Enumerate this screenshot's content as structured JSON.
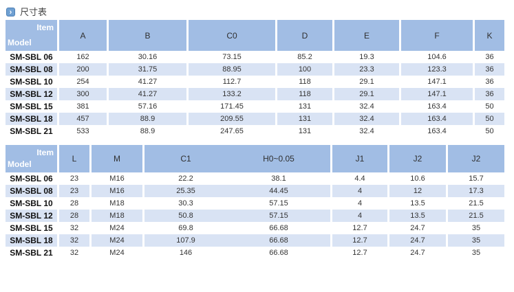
{
  "page": {
    "title": "尺寸表",
    "title_icon": "chevron-right-icon",
    "title_icon_glyph": "›"
  },
  "colors": {
    "header_bg": "#A1BDE4",
    "row_alt_bg": "#D9E3F4",
    "row_bg": "#FFFFFF",
    "icon_bg": "#6FA0D2",
    "icon_border": "#4C7FB5",
    "data_text": "#333333",
    "corner_text": "#FFFFFF"
  },
  "table1": {
    "corner": {
      "top": "Item",
      "bottom": "Model"
    },
    "columns": [
      "A",
      "B",
      "C0",
      "D",
      "E",
      "F",
      "K"
    ],
    "rows": [
      {
        "model": "SM-SBL 06",
        "values": [
          "162",
          "30.16",
          "73.15",
          "85.2",
          "19.3",
          "104.6",
          "36"
        ]
      },
      {
        "model": "SM-SBL 08",
        "values": [
          "200",
          "31.75",
          "88.95",
          "100",
          "23.3",
          "123.3",
          "36"
        ]
      },
      {
        "model": "SM-SBL 10",
        "values": [
          "254",
          "41.27",
          "112.7",
          "118",
          "29.1",
          "147.1",
          "36"
        ]
      },
      {
        "model": "SM-SBL 12",
        "values": [
          "300",
          "41.27",
          "133.2",
          "118",
          "29.1",
          "147.1",
          "36"
        ]
      },
      {
        "model": "SM-SBL 15",
        "values": [
          "381",
          "57.16",
          "171.45",
          "131",
          "32.4",
          "163.4",
          "50"
        ]
      },
      {
        "model": "SM-SBL 18",
        "values": [
          "457",
          "88.9",
          "209.55",
          "131",
          "32.4",
          "163.4",
          "50"
        ]
      },
      {
        "model": "SM-SBL 21",
        "values": [
          "533",
          "88.9",
          "247.65",
          "131",
          "32.4",
          "163.4",
          "50"
        ]
      }
    ]
  },
  "table2": {
    "corner": {
      "top": "Item",
      "bottom": "Model"
    },
    "columns": [
      "L",
      "M",
      "C1",
      "H0~0.05",
      "J1",
      "J2",
      "J2"
    ],
    "rows": [
      {
        "model": "SM-SBL 06",
        "values": [
          "23",
          "M16",
          "22.2",
          "38.1",
          "4.4",
          "10.6",
          "15.7"
        ]
      },
      {
        "model": "SM-SBL 08",
        "values": [
          "23",
          "M16",
          "25.35",
          "44.45",
          "4",
          "12",
          "17.3"
        ]
      },
      {
        "model": "SM-SBL 10",
        "values": [
          "28",
          "M18",
          "30.3",
          "57.15",
          "4",
          "13.5",
          "21.5"
        ]
      },
      {
        "model": "SM-SBL 12",
        "values": [
          "28",
          "M18",
          "50.8",
          "57.15",
          "4",
          "13.5",
          "21.5"
        ]
      },
      {
        "model": "SM-SBL 15",
        "values": [
          "32",
          "M24",
          "69.8",
          "66.68",
          "12.7",
          "24.7",
          "35"
        ]
      },
      {
        "model": "SM-SBL 18",
        "values": [
          "32",
          "M24",
          "107.9",
          "66.68",
          "12.7",
          "24.7",
          "35"
        ]
      },
      {
        "model": "SM-SBL 21",
        "values": [
          "32",
          "M24",
          "146",
          "66.68",
          "12.7",
          "24.7",
          "35"
        ]
      }
    ]
  }
}
